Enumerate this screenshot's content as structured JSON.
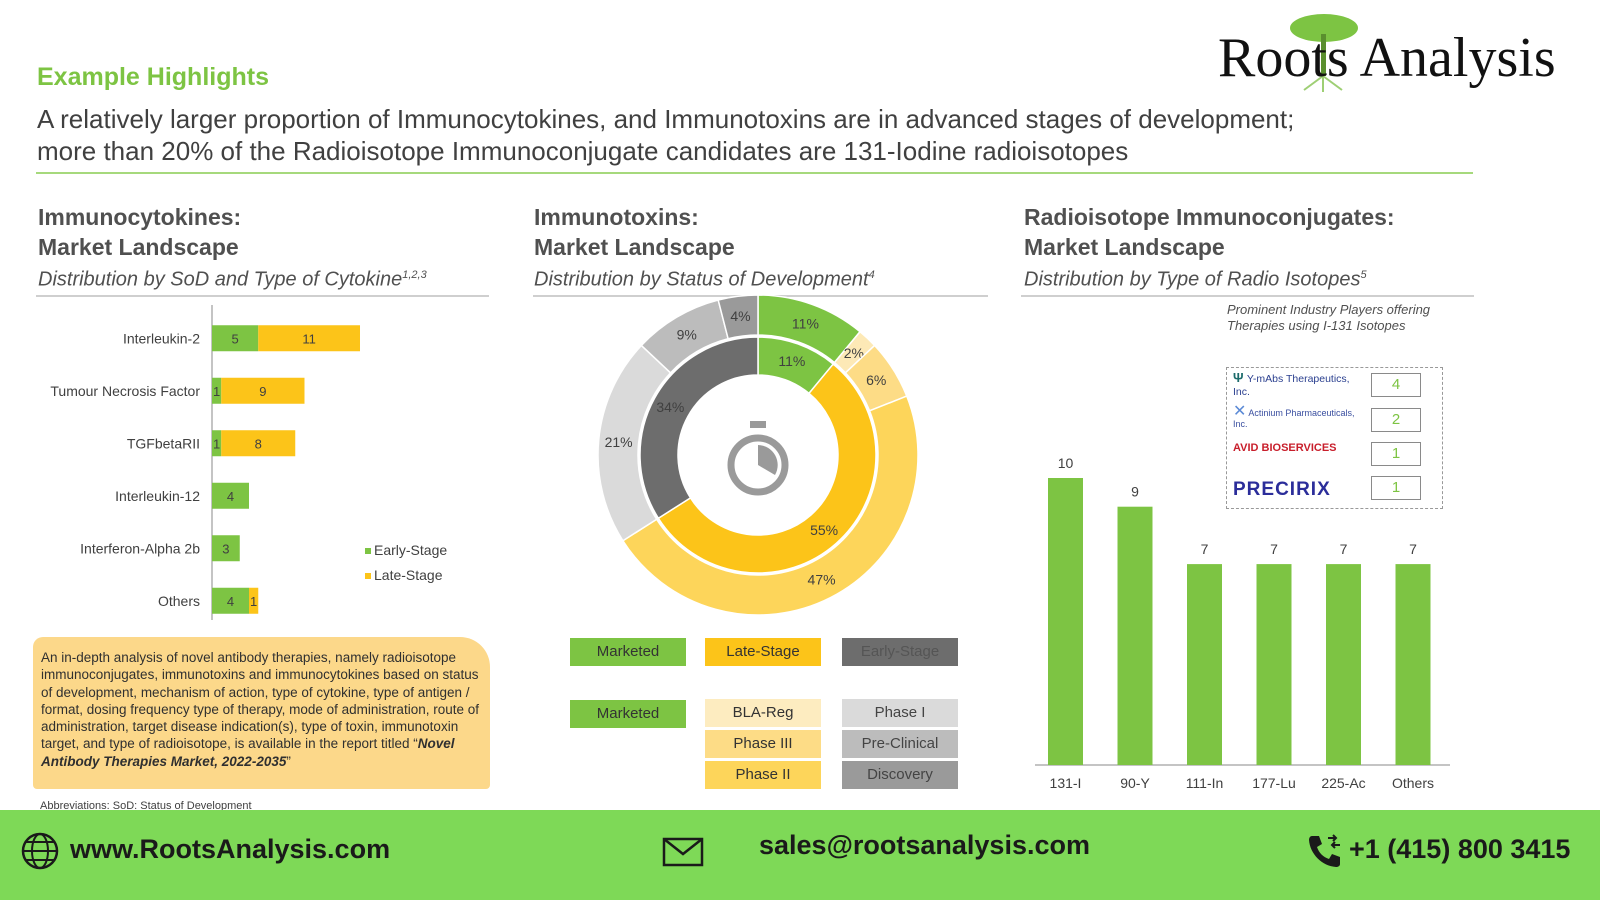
{
  "header": {
    "title": "Example Highlights",
    "headline_line1": "A relatively larger proportion of Immunocytokines, and Immunotoxins are in advanced stages of development;",
    "headline_line2": "more than 20% of the Radioisotope Immunoconjugate candidates are 131-Iodine radioisotopes"
  },
  "logo": {
    "text": "Roots Analysis"
  },
  "sections": {
    "left": {
      "title1": "Immunocytokines:",
      "title2": "Market Landscape",
      "subtitle": "Distribution by SoD and Type of Cytokine",
      "sup": "1,2,3"
    },
    "middle": {
      "title1": "Immunotoxins:",
      "title2": "Market Landscape",
      "subtitle": "Distribution by Status of Development",
      "sup": "4"
    },
    "right": {
      "title1": "Radioisotope Immunoconjugates:",
      "title2": "Market Landscape",
      "subtitle": "Distribution by Type of Radio Isotopes",
      "sup": "5"
    }
  },
  "note": {
    "text": "An in-depth analysis of novel antibody therapies, namely radioisotope immunoconjugates, immunotoxins and immunocytokines based on status of development, mechanism of action, type of cytokine, type of antigen / format, dosing frequency type of therapy, mode of administration, route of administration, target disease indication(s), type of toxin, immunotoxin target, and type of radioisotope, is available in the report titled “",
    "report_title": "Novel Antibody Therapies Market, 2022-2035",
    "close": "”",
    "abbreviation": "Abbreviations: SoD: Status of Development"
  },
  "players": {
    "title": "Prominent Industry Players offering Therapies using I-131 Isotopes",
    "items": [
      {
        "name": "Y-mAbs Therapeutics, Inc.",
        "count": "4"
      },
      {
        "name": "Actinium Pharmaceuticals, Inc.",
        "count": "2"
      },
      {
        "name": "AVID BIOSERVICES",
        "count": "1"
      },
      {
        "name": "PRECIRIX",
        "count": "1"
      }
    ]
  },
  "donut_legend": {
    "outer": [
      "Marketed",
      "Late-Stage",
      "Early-Stage"
    ],
    "inner_marketed": [
      "Marketed"
    ],
    "inner_late": [
      "BLA-Reg",
      "Phase III",
      "Phase II"
    ],
    "inner_early": [
      "Phase I",
      "Pre-Clinical",
      "Discovery"
    ]
  },
  "footer": {
    "website": "www.RootsAnalysis.com",
    "email": "sales@rootsanalysis.com",
    "phone": "+1 (415) 800 3415"
  },
  "colors": {
    "green": "#7dc443",
    "yellow": "#fcc419",
    "dark_gray": "#6d6d6d",
    "light_gray": "#d9d9d9",
    "footer_green": "#7ed957"
  },
  "chart_data": [
    {
      "type": "bar",
      "orientation": "horizontal",
      "stacked": true,
      "categories": [
        "Interleukin-2",
        "Tumour Necrosis Factor",
        "TGFbetaRII",
        "Interleukin-12",
        "Interferon-Alpha 2b",
        "Others"
      ],
      "series": [
        {
          "name": "Early-Stage",
          "values": [
            5,
            1,
            1,
            4,
            3,
            4
          ],
          "color": "#7dc443"
        },
        {
          "name": "Late-Stage",
          "values": [
            11,
            9,
            8,
            0,
            0,
            1
          ],
          "color": "#fcc419"
        }
      ],
      "legend": "bottom-right",
      "xlim": [
        0,
        16
      ]
    },
    {
      "type": "pie",
      "variant": "nested-donut",
      "outer": [
        {
          "label": "Marketed",
          "value": 11,
          "text": "11%",
          "color": "#7dc443"
        },
        {
          "label": "Late-Stage",
          "value": 55,
          "text": "55%",
          "color": "#fcc419"
        },
        {
          "label": "Early-Stage",
          "value": 34,
          "text": "34%",
          "color": "#6d6d6d"
        }
      ],
      "inner_ring": [
        {
          "label": "Marketed",
          "value": 11,
          "text": "11%",
          "color": "#7dc443"
        },
        {
          "label": "BLA-Reg",
          "value": 2,
          "text": "2%",
          "color": "#fde9b6"
        },
        {
          "label": "Phase III",
          "value": 6,
          "text": "6%",
          "color": "#fddc86"
        },
        {
          "label": "Phase II",
          "value": 47,
          "text": "47%",
          "color": "#fdd55a"
        },
        {
          "label": "Phase I",
          "value": 21,
          "text": "21%",
          "color": "#dadada"
        },
        {
          "label": "Pre-Clinical",
          "value": 9,
          "text": "9%",
          "color": "#bcbcbc"
        },
        {
          "label": "Discovery",
          "value": 4,
          "text": "4%",
          "color": "#9a9a9a"
        }
      ]
    },
    {
      "type": "bar",
      "categories": [
        "131-I",
        "90-Y",
        "111-In",
        "177-Lu",
        "225-Ac",
        "Others"
      ],
      "values": [
        10,
        9,
        7,
        7,
        7,
        7
      ],
      "color": "#7dc443",
      "ylim": [
        0,
        12
      ]
    }
  ]
}
